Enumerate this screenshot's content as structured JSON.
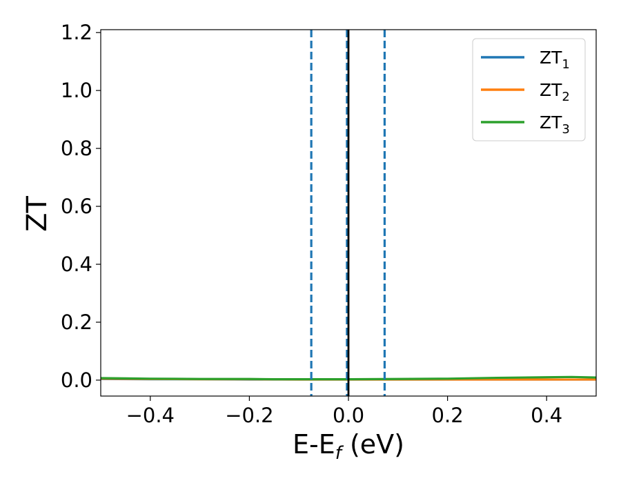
{
  "chart_data": {
    "type": "line",
    "xlabel": "E-E",
    "xlabel_sub": "f",
    "xlabel_unit": " (eV)",
    "ylabel": "ZT",
    "xlim": [
      -0.5,
      0.5
    ],
    "ylim": [
      -0.055,
      1.21
    ],
    "xticks": [
      -0.4,
      -0.2,
      0.0,
      0.2,
      0.4
    ],
    "xtick_labels": [
      "−0.4",
      "−0.2",
      "0.0",
      "0.2",
      "0.4"
    ],
    "yticks": [
      0.0,
      0.2,
      0.4,
      0.6,
      0.8,
      1.0,
      1.2
    ],
    "ytick_labels": [
      "0.0",
      "0.2",
      "0.4",
      "0.6",
      "0.8",
      "1.0",
      "1.2"
    ],
    "grid": false,
    "legend_position": "top-right",
    "series": [
      {
        "name": "ZT",
        "sub": "1",
        "color": "#1f77b4",
        "x": [
          -0.5,
          -0.4,
          -0.3,
          -0.2,
          -0.1,
          0.0,
          0.1,
          0.2,
          0.3,
          0.4,
          0.5
        ],
        "y": [
          0.004,
          0.003,
          0.003,
          0.002,
          0.002,
          0.002,
          0.002,
          0.002,
          0.002,
          0.002,
          0.002
        ]
      },
      {
        "name": "ZT",
        "sub": "2",
        "color": "#ff7f0e",
        "x": [
          -0.5,
          -0.4,
          -0.3,
          -0.2,
          -0.1,
          0.0,
          0.1,
          0.2,
          0.3,
          0.4,
          0.5
        ],
        "y": [
          0.005,
          0.004,
          0.003,
          0.003,
          0.002,
          0.002,
          0.002,
          0.002,
          0.002,
          0.002,
          0.002
        ]
      },
      {
        "name": "ZT",
        "sub": "3",
        "color": "#2ca02c",
        "x": [
          -0.5,
          -0.45,
          -0.4,
          -0.3,
          -0.2,
          -0.15,
          -0.1,
          0.0,
          0.1,
          0.2,
          0.3,
          0.4,
          0.45,
          0.5
        ],
        "y": [
          0.007,
          0.006,
          0.005,
          0.004,
          0.004,
          0.003,
          0.003,
          0.003,
          0.004,
          0.005,
          0.008,
          0.01,
          0.011,
          0.009
        ]
      }
    ],
    "vlines": [
      {
        "x": -0.075,
        "style": "dashed",
        "color": "#1f77b4"
      },
      {
        "x": -0.003,
        "style": "dashed",
        "color": "#1f77b4"
      },
      {
        "x": 0.0,
        "style": "solid",
        "color": "#000000"
      },
      {
        "x": 0.073,
        "style": "dashed",
        "color": "#1f77b4"
      }
    ]
  }
}
